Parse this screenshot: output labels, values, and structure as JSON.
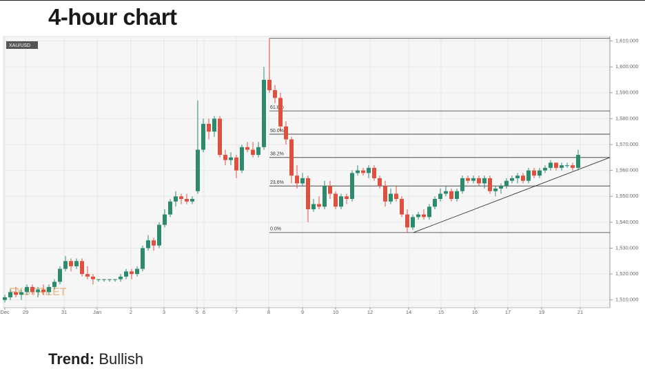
{
  "header": {
    "title": "4-hour chart"
  },
  "chart_data": {
    "type": "candlestick",
    "symbol": "XAU/USD",
    "watermark": "FXSTREET",
    "up_color": "#2d8a6c",
    "down_color": "#dd5140",
    "xlim": [
      -0.25,
      109.75
    ],
    "xticks": [
      {
        "value": 0,
        "label": "Dec"
      },
      {
        "value": 3.75,
        "label": "29"
      },
      {
        "value": 10.75,
        "label": "31"
      },
      {
        "value": 16.75,
        "label": "Jan"
      },
      {
        "value": 22.875,
        "label": "2"
      },
      {
        "value": 28.875,
        "label": "3"
      },
      {
        "value": 34.875,
        "label": "5"
      },
      {
        "value": 36.125,
        "label": "6"
      },
      {
        "value": 42,
        "label": "7"
      },
      {
        "value": 47.875,
        "label": "8"
      },
      {
        "value": 54,
        "label": "9"
      },
      {
        "value": 60,
        "label": "10"
      },
      {
        "value": 66.25,
        "label": "12"
      },
      {
        "value": 73.25,
        "label": "14"
      },
      {
        "value": 79.125,
        "label": "15"
      },
      {
        "value": 85.25,
        "label": "16"
      },
      {
        "value": 91.25,
        "label": "17"
      },
      {
        "value": 97.375,
        "label": "19"
      },
      {
        "value": 104.375,
        "label": "21"
      }
    ],
    "ylim": [
      1507,
      1612
    ],
    "yticks": [
      {
        "value": 1510,
        "label": "1,510.000"
      },
      {
        "value": 1520,
        "label": "1,520.000"
      },
      {
        "value": 1530,
        "label": "1,530.000"
      },
      {
        "value": 1540,
        "label": "1,540.000"
      },
      {
        "value": 1550,
        "label": "1,550.000"
      },
      {
        "value": 1560,
        "label": "1,560.000"
      },
      {
        "value": 1570,
        "label": "1,570.000"
      },
      {
        "value": 1580,
        "label": "1,580.000"
      },
      {
        "value": 1590,
        "label": "1,590.000"
      },
      {
        "value": 1600,
        "label": "1,600.000"
      },
      {
        "value": 1610,
        "label": "1,610.000"
      }
    ],
    "grid": true,
    "open": [
      1510,
      1511,
      1513,
      1512,
      1513,
      1515,
      1513,
      1514,
      1513,
      1515,
      1517,
      1522,
      1525,
      1523,
      1525,
      1520,
      1519,
      1518,
      1518,
      1518,
      1518,
      1518,
      1519,
      1521,
      1520,
      1522,
      1530,
      1533,
      1531,
      1539,
      1543,
      1548,
      1550,
      1549,
      1548,
      1552,
      1568,
      1578,
      1575,
      1580,
      1566,
      1564,
      1565,
      1560,
      1569,
      1568,
      1566,
      1569,
      1595,
      1591,
      1588,
      1577,
      1572,
      1558,
      1555,
      1557,
      1545,
      1547,
      1546,
      1554,
      1551,
      1546,
      1550,
      1549,
      1559,
      1560,
      1559,
      1561,
      1557,
      1554,
      1548,
      1551,
      1549,
      1543,
      1538,
      1542,
      1543,
      1542,
      1546,
      1549,
      1551,
      1552,
      1549,
      1552,
      1557,
      1556,
      1557,
      1555,
      1557,
      1552,
      1553,
      1554,
      1556,
      1557,
      1558,
      1556,
      1560,
      1558,
      1560,
      1561,
      1563,
      1561,
      1562,
      1562,
      1561
    ],
    "high": [
      1512,
      1514,
      1515,
      1514,
      1516,
      1516,
      1515,
      1516,
      1516,
      1518,
      1523,
      1527,
      1526,
      1526,
      1526,
      1523,
      1520,
      1518,
      1518,
      1518,
      1518,
      1520,
      1522,
      1522,
      1523,
      1531,
      1535,
      1534,
      1540,
      1545,
      1549,
      1552,
      1551,
      1551,
      1550,
      1587,
      1580,
      1580,
      1581,
      1581,
      1568,
      1567,
      1566,
      1570,
      1571,
      1571,
      1571,
      1600,
      1611,
      1593,
      1590,
      1579,
      1573,
      1562,
      1559,
      1558,
      1549,
      1550,
      1556,
      1556,
      1552,
      1551,
      1551,
      1560,
      1562,
      1561,
      1562,
      1562,
      1558,
      1556,
      1553,
      1554,
      1550,
      1545,
      1543,
      1544,
      1545,
      1547,
      1550,
      1553,
      1554,
      1553,
      1553,
      1558,
      1558,
      1558,
      1558,
      1558,
      1558,
      1554,
      1555,
      1557,
      1558,
      1559,
      1559,
      1561,
      1561,
      1561,
      1562,
      1564,
      1563,
      1563,
      1563,
      1563,
      1568
    ],
    "low": [
      1509,
      1510,
      1511,
      1510,
      1512,
      1512,
      1511,
      1512,
      1512,
      1514,
      1516,
      1521,
      1521,
      1522,
      1519,
      1518,
      1516,
      1517,
      1517,
      1517,
      1517,
      1517,
      1518,
      1518,
      1519,
      1521,
      1529,
      1529,
      1530,
      1538,
      1542,
      1546,
      1547,
      1547,
      1547,
      1551,
      1567,
      1572,
      1573,
      1565,
      1562,
      1562,
      1557,
      1559,
      1567,
      1565,
      1565,
      1568,
      1590,
      1586,
      1575,
      1570,
      1555,
      1553,
      1554,
      1540,
      1544,
      1545,
      1545,
      1549,
      1545,
      1545,
      1547,
      1548,
      1558,
      1558,
      1557,
      1556,
      1553,
      1546,
      1547,
      1548,
      1542,
      1536,
      1537,
      1541,
      1541,
      1541,
      1545,
      1548,
      1550,
      1548,
      1548,
      1551,
      1555,
      1555,
      1554,
      1553,
      1551,
      1550,
      1551,
      1553,
      1555,
      1555,
      1555,
      1555,
      1557,
      1557,
      1559,
      1560,
      1560,
      1560,
      1561,
      1560,
      1560
    ],
    "close": [
      1511,
      1513,
      1512,
      1513,
      1515,
      1513,
      1514,
      1513,
      1515,
      1517,
      1522,
      1525,
      1523,
      1525,
      1520,
      1519,
      1518,
      1518,
      1518,
      1518,
      1518,
      1519,
      1521,
      1520,
      1522,
      1530,
      1533,
      1531,
      1539,
      1543,
      1548,
      1550,
      1549,
      1548,
      1549,
      1568,
      1578,
      1575,
      1580,
      1566,
      1564,
      1565,
      1560,
      1569,
      1568,
      1566,
      1569,
      1595,
      1591,
      1588,
      1577,
      1572,
      1558,
      1555,
      1557,
      1545,
      1547,
      1546,
      1554,
      1551,
      1546,
      1550,
      1549,
      1559,
      1560,
      1559,
      1561,
      1557,
      1554,
      1548,
      1551,
      1549,
      1543,
      1538,
      1542,
      1543,
      1542,
      1546,
      1549,
      1551,
      1552,
      1549,
      1552,
      1557,
      1556,
      1557,
      1555,
      1557,
      1552,
      1553,
      1554,
      1556,
      1557,
      1558,
      1556,
      1560,
      1558,
      1560,
      1561,
      1563,
      1561,
      1562,
      1562,
      1561,
      1566
    ],
    "fib_start": 48,
    "fib_levels": [
      {
        "value": 1611
      },
      {
        "value": 1583,
        "label": "61.8%"
      },
      {
        "value": 1574,
        "label": "50.0%"
      },
      {
        "value": 1565,
        "label": "38.2%"
      },
      {
        "value": 1554,
        "label": "23.6%"
      },
      {
        "value": 1536,
        "label": "0.0%"
      }
    ],
    "trendline": {
      "x": [
        74.1,
        109.75
      ],
      "y": [
        1536,
        1565
      ]
    }
  },
  "trend": {
    "label": "Trend:",
    "value": "Bullish"
  }
}
